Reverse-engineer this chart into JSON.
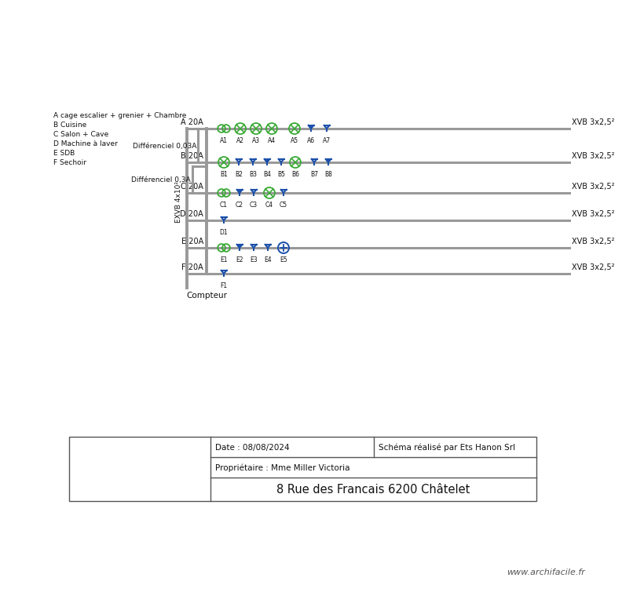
{
  "title": "8 Rue des Francais 6200 Châtelet",
  "proprietaire": "Propriétaire : Mme Miller Victoria",
  "date": "Date : 08/08/2024",
  "schema": "Schéma réalisé par Ets Hanon Srl",
  "website": "www.archifacile.fr",
  "legend_lines": [
    "A cage escalier + grenier + Chambre",
    "B Cuisine",
    "C Salon + Cave",
    "D Machine à laver",
    "E SDB",
    "F Sechoir"
  ],
  "cable_label": "EXVB 4x10²",
  "compteur": "Compteur",
  "xvb_label": "XVB 3x2,5²",
  "bg_color": "#ffffff",
  "line_color": "#999999",
  "green_color": "#3aaa35",
  "blue_color": "#1a4faa",
  "text_color": "#111111",
  "diff1_label": "Différenciel 0,03A",
  "diff2_label": "Différenciel 0,3A"
}
